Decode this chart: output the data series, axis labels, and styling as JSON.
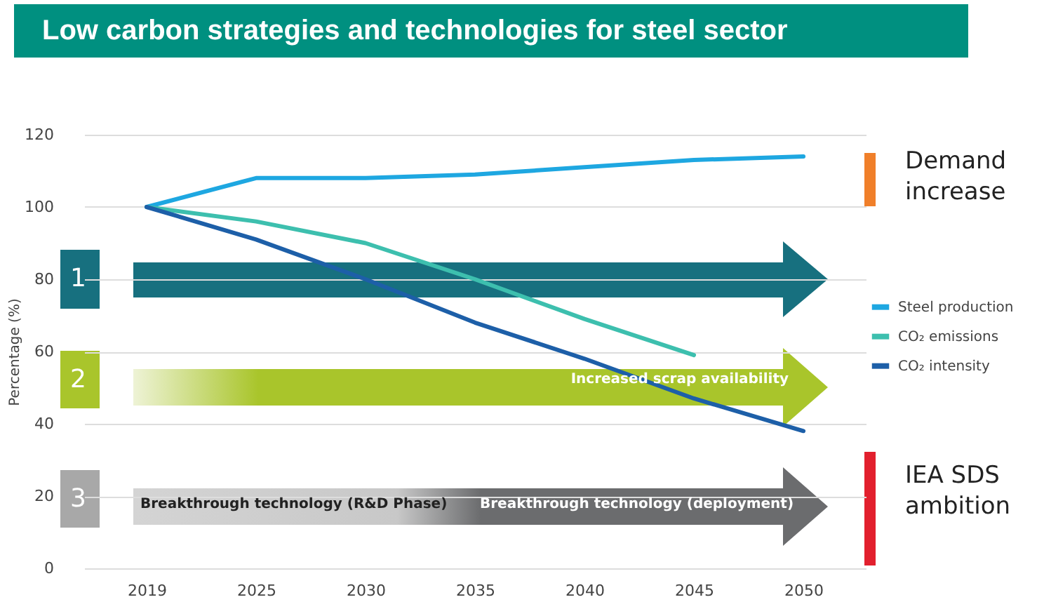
{
  "chart_data": {
    "type": "line",
    "title": "Low carbon strategies and technologies for steel sector",
    "ylabel": "Percentage (%)",
    "categories": [
      "2019",
      "2025",
      "2030",
      "2035",
      "2040",
      "2045",
      "2050"
    ],
    "series": [
      {
        "name": "Steel production",
        "color": "#1ea7e1",
        "values": [
          100,
          108,
          108,
          109,
          111,
          113,
          114
        ]
      },
      {
        "name": "CO₂ emissions",
        "color": "#3dbfae",
        "values": [
          100,
          96,
          90,
          80,
          69,
          59,
          null
        ]
      },
      {
        "name": "CO₂ intensity",
        "color": "#1d5fa8",
        "values": [
          100,
          91,
          80,
          68,
          58,
          47,
          38
        ]
      }
    ],
    "ylim": [
      0,
      120
    ],
    "yticks": [
      0,
      20,
      40,
      60,
      80,
      100,
      120
    ],
    "grid": "y",
    "legend": "right",
    "annotations": [
      "1",
      "2",
      "3",
      "Increased scrap availability",
      "Breakthrough technology (R&D Phase)",
      "Breakthrough technology (deployment)",
      "Demand increase",
      "IEA SDS ambition"
    ]
  }
}
